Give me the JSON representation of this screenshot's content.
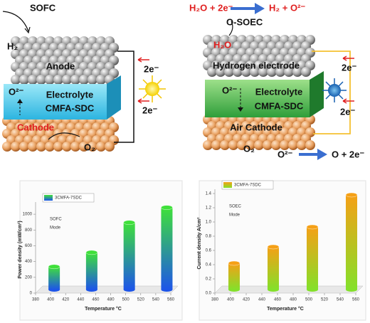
{
  "diagrams": {
    "sofc": {
      "title": "SOFC",
      "fuel": "H₂",
      "anode": "Anode",
      "electron_top": "2e⁻",
      "ion": "O²⁻",
      "electrolyte": "Electrolyte",
      "material": "CMFA-SDC",
      "electron_bottom": "2e⁻",
      "cathode": "Cathode",
      "oxidant": "O₂"
    },
    "soec": {
      "reaction_left": "H₂O + 2e⁻",
      "reaction_right": "H₂ + O²⁻",
      "title": "O-SOEC",
      "feed": "H₂O",
      "anode": "Hydrogen electrode",
      "electron_top": "2e⁻",
      "ion": "O²⁻",
      "electrolyte": "Electrolyte",
      "material": "CMFA-SDC",
      "electron_bottom": "2e⁻",
      "cathode": "Air Cathode",
      "product": "O₂",
      "oxide_reaction_left": "O²⁻",
      "oxide_reaction_right": "O + 2e⁻"
    }
  },
  "chart_data": [
    {
      "type": "bar",
      "annotation": [
        "SOFC",
        "Mode"
      ],
      "xlabel": "Temperature °C",
      "ylabel": "Power density (mW/cm²)",
      "x": [
        400,
        450,
        500,
        550
      ],
      "series": [
        {
          "name": "3CMFA-7SDC",
          "colors": [
            "#3fe03a",
            "#1d55e8"
          ],
          "values": [
            290,
            470,
            850,
            1040
          ]
        }
      ],
      "xlim": [
        380,
        560
      ],
      "xticks": [
        380,
        400,
        420,
        440,
        460,
        480,
        500,
        520,
        540,
        560
      ],
      "ylim": [
        0,
        1100
      ],
      "yticks": [
        0,
        200,
        400,
        600,
        800,
        1000
      ]
    },
    {
      "type": "bar",
      "annotation": [
        "SOEC",
        "Mode"
      ],
      "xlabel": "Temperature °C",
      "ylabel": "Current density A/cm²",
      "x": [
        400,
        450,
        500,
        550
      ],
      "series": [
        {
          "name": "3CMFA-7SDC",
          "colors": [
            "#f5a016",
            "#84e02a"
          ],
          "values": [
            0.37,
            0.6,
            0.88,
            1.33
          ]
        }
      ],
      "xlim": [
        380,
        560
      ],
      "xticks": [
        380,
        400,
        420,
        440,
        460,
        480,
        500,
        520,
        540,
        560
      ],
      "ylim": [
        0,
        1.4
      ],
      "yticks": [
        {
          "value": 0,
          "label": "0.0"
        },
        0.2,
        0.4,
        0.6,
        0.8,
        {
          "value": 1,
          "label": "1.0"
        },
        1.2,
        1.4
      ]
    }
  ]
}
